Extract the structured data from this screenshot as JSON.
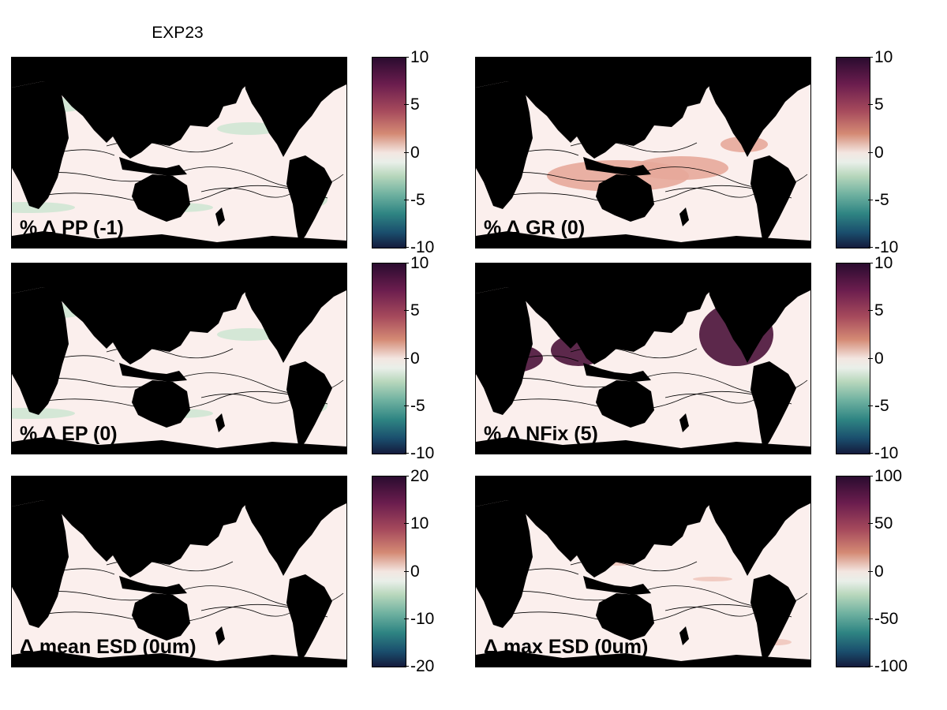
{
  "figure": {
    "title": "EXP23"
  },
  "colors": {
    "land": "#000000",
    "ocean_neutral": "#fbefed",
    "green_anomaly": "#cfe5d3",
    "red_anomaly": "#e7a89a",
    "purple_anomaly": "#4a1238"
  },
  "panels": [
    {
      "label": "% Δ PP (-1)",
      "colorbar_ticks": [
        "10",
        "5",
        "0",
        "-5",
        "-10"
      ]
    },
    {
      "label": "% Δ GR (0)",
      "colorbar_ticks": [
        "10",
        "5",
        "0",
        "-5",
        "-10"
      ]
    },
    {
      "label": "% Δ EP (0)",
      "colorbar_ticks": [
        "10",
        "5",
        "0",
        "-5",
        "-10"
      ]
    },
    {
      "label": "% Δ NFix (5)",
      "colorbar_ticks": [
        "10",
        "5",
        "0",
        "-5",
        "-10"
      ]
    },
    {
      "label": "Δ mean ESD (0um)",
      "colorbar_ticks": [
        "20",
        "10",
        "0",
        "-10",
        "-20"
      ]
    },
    {
      "label": "Δ max ESD (0um)",
      "colorbar_ticks": [
        "100",
        "50",
        "0",
        "-50",
        "-100"
      ]
    }
  ]
}
